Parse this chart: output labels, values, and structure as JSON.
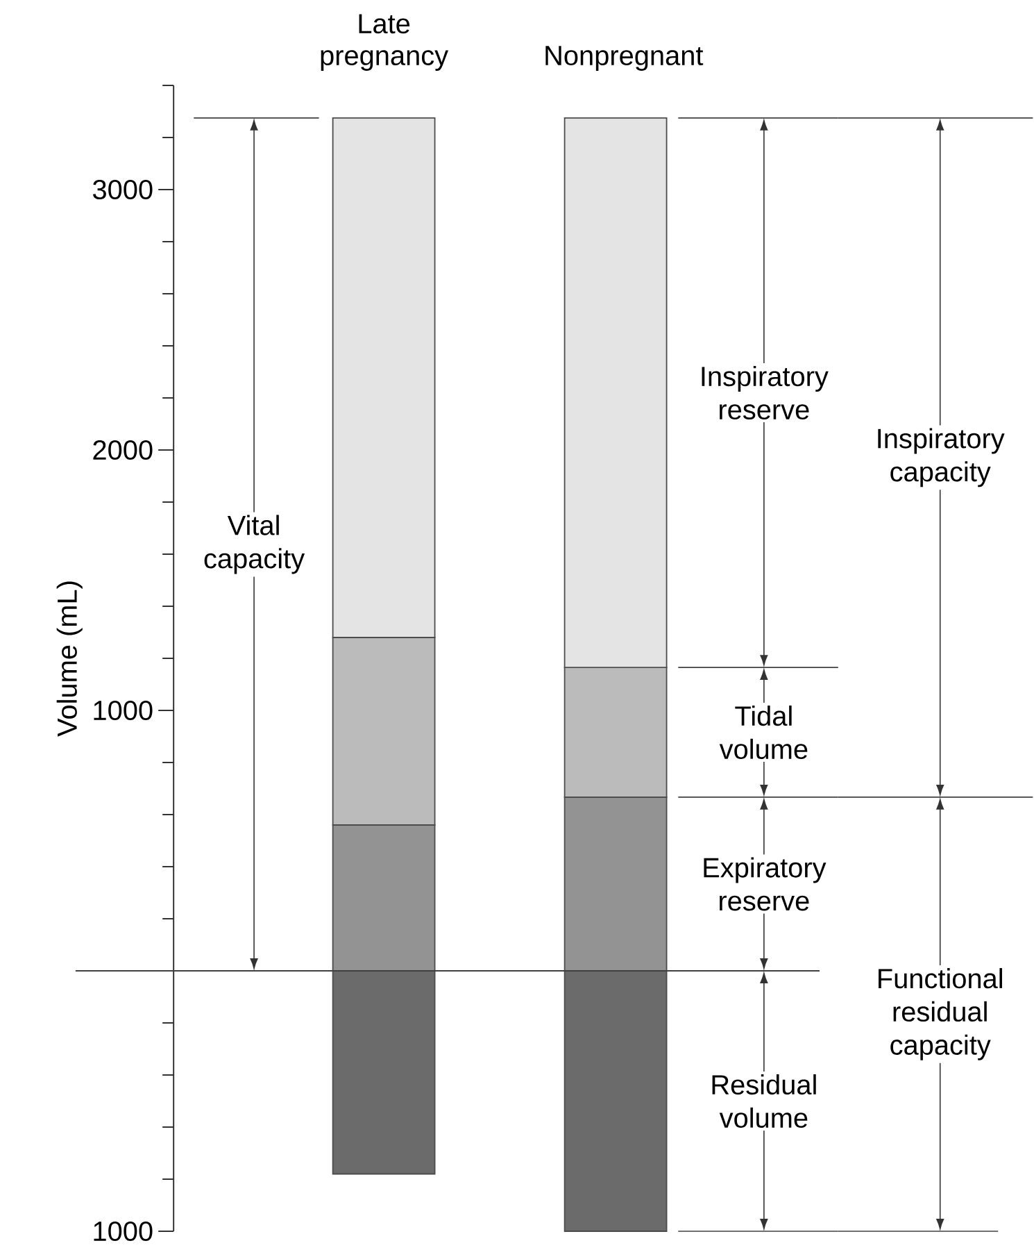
{
  "chart_data": {
    "type": "bar",
    "stacked": true,
    "ylabel": "Volume (mL)",
    "categories": [
      "Late pregnancy",
      "Nonpregnant"
    ],
    "series": [
      {
        "name": "Residual volume",
        "color": "#6b6b6b",
        "values": [
          -780,
          -1000
        ]
      },
      {
        "name": "Expiratory reserve",
        "color": "#939393",
        "values": [
          560,
          667
        ]
      },
      {
        "name": "Tidal volume",
        "color": "#bbbbbb",
        "values": [
          720,
          498
        ]
      },
      {
        "name": "Inspiratory reserve",
        "color": "#e4e4e4",
        "values": [
          1995,
          2110
        ]
      }
    ],
    "ylim": [
      -1000,
      3400
    ],
    "yticks": [
      {
        "value": -1000,
        "label": "1000"
      },
      1000,
      2000,
      3000
    ],
    "ref_lines": [
      {
        "axis": "y",
        "value": 0
      }
    ],
    "annotations": [
      "Vital capacity",
      "Inspiratory capacity",
      "Functional residual capacity"
    ],
    "grid": false
  }
}
